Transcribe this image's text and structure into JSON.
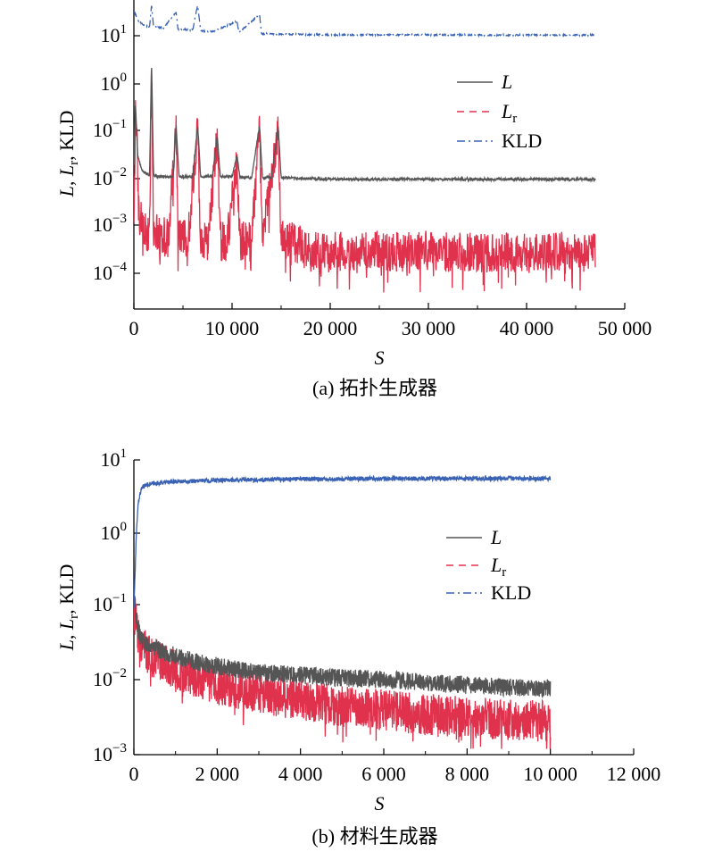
{
  "chart_data": [
    {
      "type": "line",
      "caption": "(a) 拓扑生成器",
      "xlabel": "S",
      "ylabel": "L, Lr, KLD",
      "x_ticks": [
        "0",
        "10 000",
        "20 000",
        "30 000",
        "40 000",
        "50 000"
      ],
      "xlim": [
        0,
        50000
      ],
      "y_scale": "log",
      "ylim": [
        2e-05,
        50
      ],
      "y_ticks": [
        {
          "base": "10",
          "exp": "1"
        },
        {
          "base": "10",
          "exp": "0"
        },
        {
          "base": "10",
          "exp": "−1"
        },
        {
          "base": "10",
          "exp": "−2"
        },
        {
          "base": "10",
          "exp": "−3"
        },
        {
          "base": "10",
          "exp": "−4"
        }
      ],
      "legend_position": "upper-right",
      "legend": [
        {
          "name": "L",
          "sub": ""
        },
        {
          "name": "L",
          "sub": "r"
        },
        {
          "name": "KLD",
          "sub": ""
        }
      ],
      "series": [
        {
          "name": "L",
          "color": "#555555",
          "style": "solid",
          "x": [
            0,
            150,
            400,
            800,
            1200,
            1600,
            1800,
            2000,
            2500,
            3000,
            4000,
            4300,
            4600,
            5000,
            6000,
            6500,
            6800,
            7500,
            8000,
            8500,
            8800,
            9500,
            10000,
            10500,
            10800,
            11500,
            12000,
            12800,
            13100,
            14000,
            14700,
            15000,
            16000,
            17000,
            18000,
            20000,
            25000,
            30000,
            35000,
            40000,
            45000,
            47000
          ],
          "y": [
            0.02,
            0.4,
            0.03,
            0.015,
            0.013,
            0.012,
            3.0,
            0.012,
            0.011,
            0.011,
            0.011,
            0.13,
            0.011,
            0.011,
            0.011,
            0.13,
            0.011,
            0.011,
            0.011,
            0.08,
            0.011,
            0.011,
            0.011,
            0.03,
            0.0105,
            0.0105,
            0.0105,
            0.13,
            0.0105,
            0.0105,
            0.12,
            0.0105,
            0.0102,
            0.01,
            0.01,
            0.0098,
            0.0097,
            0.0097,
            0.0097,
            0.0097,
            0.0097,
            0.0097
          ]
        },
        {
          "name": "Lr",
          "color": "#e0314d",
          "style": "dashed",
          "x": [
            0,
            200,
            500,
            1000,
            1600,
            1800,
            2000,
            2500,
            3500,
            4300,
            4500,
            5500,
            6500,
            6800,
            7500,
            8500,
            8800,
            9500,
            10500,
            10800,
            12000,
            12800,
            13100,
            14700,
            15000,
            16000,
            17000,
            18000,
            20000,
            22000,
            25000,
            28000,
            30000,
            33000,
            35000,
            38000,
            40000,
            42000,
            44000,
            46000,
            47000
          ],
          "y": [
            0.002,
            0.4,
            0.002,
            0.0009,
            0.0007,
            2.0,
            0.0008,
            0.0007,
            0.0006,
            0.1,
            0.0006,
            0.0005,
            0.1,
            0.0005,
            0.0005,
            0.07,
            0.0005,
            0.0005,
            0.02,
            0.0005,
            0.0005,
            0.1,
            0.0005,
            0.1,
            0.0005,
            0.0005,
            0.0004,
            0.0003,
            0.0003,
            0.00033,
            0.00032,
            0.0003,
            0.00032,
            0.0003,
            0.0003,
            0.0003,
            0.00031,
            0.0003,
            0.0003,
            0.0003,
            0.00033
          ]
        },
        {
          "name": "KLD",
          "color": "#3a62b4",
          "style": "dashdot",
          "x": [
            0,
            500,
            1000,
            1600,
            1800,
            2000,
            3000,
            4300,
            4500,
            6000,
            6500,
            6800,
            8000,
            10500,
            10700,
            12800,
            13000,
            15000,
            20000,
            25000,
            30000,
            35000,
            40000,
            45000,
            47000
          ],
          "y": [
            30,
            18,
            15,
            14,
            40,
            14,
            13,
            28,
            12.5,
            12,
            40,
            11.5,
            11,
            18,
            10.5,
            25,
            10,
            9.8,
            9.5,
            9.5,
            9.5,
            9.4,
            9.4,
            9.4,
            9.4
          ]
        }
      ]
    },
    {
      "type": "line",
      "caption": "(b) 材料生成器",
      "xlabel": "S",
      "ylabel": "L, Lr, KLD",
      "x_ticks": [
        "0",
        "2 000",
        "4 000",
        "6 000",
        "8 000",
        "10 000",
        "12 000"
      ],
      "xlim": [
        0,
        12000
      ],
      "y_scale": "log",
      "ylim": [
        0.001,
        10
      ],
      "y_ticks": [
        {
          "base": "10",
          "exp": "1"
        },
        {
          "base": "10",
          "exp": "0"
        },
        {
          "base": "10",
          "exp": "−1"
        },
        {
          "base": "10",
          "exp": "−2"
        },
        {
          "base": "10",
          "exp": "−3"
        }
      ],
      "legend_position": "center-right",
      "legend": [
        {
          "name": "L",
          "sub": ""
        },
        {
          "name": "L",
          "sub": "r"
        },
        {
          "name": "KLD",
          "sub": ""
        }
      ],
      "series": [
        {
          "name": "L",
          "color": "#555555",
          "style": "solid",
          "x": [
            0,
            50,
            100,
            200,
            400,
            700,
            1000,
            1500,
            2000,
            3000,
            4000,
            5000,
            6000,
            7000,
            8000,
            9000,
            10000
          ],
          "y": [
            0.15,
            0.08,
            0.05,
            0.035,
            0.03,
            0.025,
            0.022,
            0.018,
            0.016,
            0.013,
            0.012,
            0.011,
            0.0105,
            0.0095,
            0.0088,
            0.0082,
            0.008
          ]
        },
        {
          "name": "Lr",
          "color": "#e0314d",
          "style": "dashed",
          "x": [
            0,
            50,
            100,
            200,
            400,
            700,
            1000,
            1500,
            2000,
            3000,
            4000,
            5000,
            6000,
            7000,
            8000,
            9000,
            10000
          ],
          "y": [
            0.1,
            0.06,
            0.04,
            0.028,
            0.022,
            0.018,
            0.014,
            0.011,
            0.009,
            0.007,
            0.0055,
            0.0045,
            0.004,
            0.0035,
            0.0032,
            0.003,
            0.0028
          ]
        },
        {
          "name": "KLD",
          "color": "#3a62b4",
          "style": "dashdot",
          "x": [
            0,
            30,
            60,
            100,
            150,
            200,
            300,
            500,
            800,
            1000,
            1500,
            2000,
            3000,
            4000,
            5000,
            6000,
            7000,
            8000,
            9000,
            10000
          ],
          "y": [
            0.1,
            0.3,
            1.0,
            2.5,
            3.5,
            4.2,
            4.6,
            4.8,
            5.0,
            5.1,
            5.2,
            5.3,
            5.4,
            5.5,
            5.5,
            5.6,
            5.6,
            5.6,
            5.6,
            5.6
          ]
        }
      ]
    }
  ]
}
